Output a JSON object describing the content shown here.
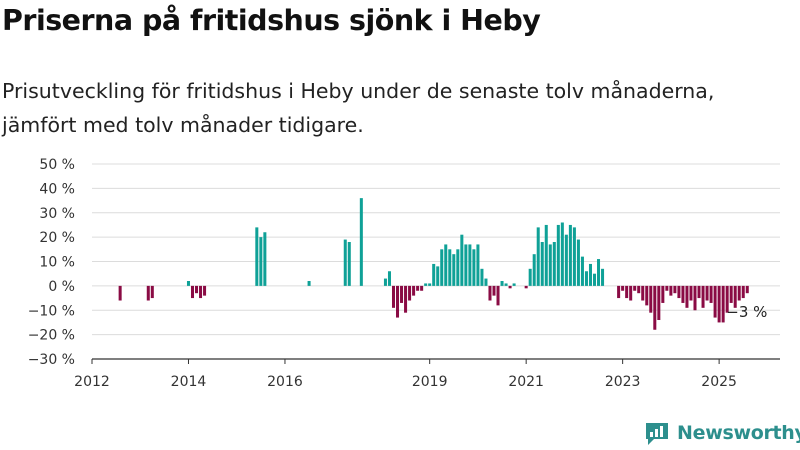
{
  "header": {
    "title": "Priserna på fritidshus sjönk i Heby",
    "subtitle": "Prisutveckling för fritidshus i Heby under de senaste tolv månaderna, jämfört med tolv månader tidigare."
  },
  "brand": {
    "name": "Newsworthy",
    "color": "#2d8f8d"
  },
  "colors": {
    "positive": "#0fa197",
    "negative": "#8a0b44",
    "grid": "#dcdcdc",
    "axis": "#333333"
  },
  "chart_data": {
    "type": "bar",
    "title": "Priserna på fritidshus sjönk i Heby",
    "subtitle": "Prisutveckling för fritidshus i Heby under de senaste tolv månaderna, jämfört med tolv månader tidigare.",
    "ylim": [
      -30,
      50
    ],
    "yticks": [
      50,
      40,
      30,
      20,
      10,
      0,
      -10,
      -20,
      -30
    ],
    "ytick_labels": [
      "50 %",
      "40 %",
      "30 %",
      "20 %",
      "10 %",
      "0 %",
      "−10 %",
      "−20 %",
      "−30 %"
    ],
    "xlim": [
      "2012-01",
      "2026-12"
    ],
    "xticks": [
      "2012",
      "2014",
      "2016",
      "2019",
      "2021",
      "2023",
      "2025"
    ],
    "grid": true,
    "annotation": {
      "date": "2025-08",
      "text": "−3 %"
    },
    "series": [
      {
        "x": [
          "2012-08",
          "2013-03",
          "2013-04",
          "2014-01",
          "2014-02",
          "2014-03",
          "2014-04",
          "2014-05",
          "2015-06",
          "2015-07",
          "2015-08",
          "2016-07",
          "2017-04",
          "2017-05",
          "2017-08",
          "2018-02",
          "2018-03",
          "2018-04",
          "2018-05",
          "2018-06",
          "2018-07",
          "2018-08",
          "2018-09",
          "2018-10",
          "2018-11",
          "2018-12",
          "2019-01",
          "2019-02",
          "2019-03",
          "2019-04",
          "2019-05",
          "2019-06",
          "2019-07",
          "2019-08",
          "2019-09",
          "2019-10",
          "2019-11",
          "2019-12",
          "2020-01",
          "2020-02",
          "2020-03",
          "2020-04",
          "2020-05",
          "2020-06",
          "2020-07",
          "2020-08",
          "2020-09",
          "2020-10",
          "2020-11",
          "2020-12",
          "2021-01",
          "2021-02",
          "2021-03",
          "2021-04",
          "2021-05",
          "2021-06",
          "2021-07",
          "2021-08",
          "2021-09",
          "2021-10",
          "2021-11",
          "2021-12",
          "2022-01",
          "2022-02",
          "2022-03",
          "2022-04",
          "2022-05",
          "2022-06",
          "2022-07",
          "2022-08",
          "2022-09",
          "2022-12",
          "2023-01",
          "2023-02",
          "2023-03",
          "2023-04",
          "2023-05",
          "2023-06",
          "2023-07",
          "2023-08",
          "2023-09",
          "2023-10",
          "2023-11",
          "2023-12",
          "2024-01",
          "2024-02",
          "2024-03",
          "2024-04",
          "2024-05",
          "2024-06",
          "2024-07",
          "2024-08",
          "2024-09",
          "2024-10",
          "2024-11",
          "2024-12",
          "2025-01",
          "2025-02",
          "2025-03",
          "2025-04",
          "2025-05",
          "2025-06",
          "2025-07",
          "2025-08"
        ],
        "values": [
          -6,
          -6,
          -5,
          2,
          -5,
          -3,
          -5,
          -4,
          24,
          20,
          22,
          2,
          19,
          18,
          36,
          3,
          6,
          -9,
          -13,
          -7,
          -11,
          -6,
          -4,
          -2,
          -2,
          1,
          1,
          9,
          8,
          15,
          17,
          15,
          13,
          15,
          21,
          17,
          17,
          15,
          17,
          7,
          3,
          -6,
          -4,
          -8,
          2,
          1,
          -1,
          1,
          0,
          0,
          -1,
          7,
          13,
          24,
          18,
          25,
          17,
          18,
          25,
          26,
          21,
          25,
          24,
          19,
          12,
          6,
          9,
          5,
          11,
          7,
          0,
          -5,
          -2,
          -5,
          -6,
          -2,
          -3,
          -6,
          -8,
          -11,
          -18,
          -14,
          -7,
          -2,
          -4,
          -3,
          -5,
          -7,
          -9,
          -6,
          -10,
          -5,
          -9,
          -6,
          -7,
          -13,
          -15,
          -15,
          -11,
          -7,
          -9,
          -6,
          -5,
          -3
        ]
      }
    ]
  }
}
